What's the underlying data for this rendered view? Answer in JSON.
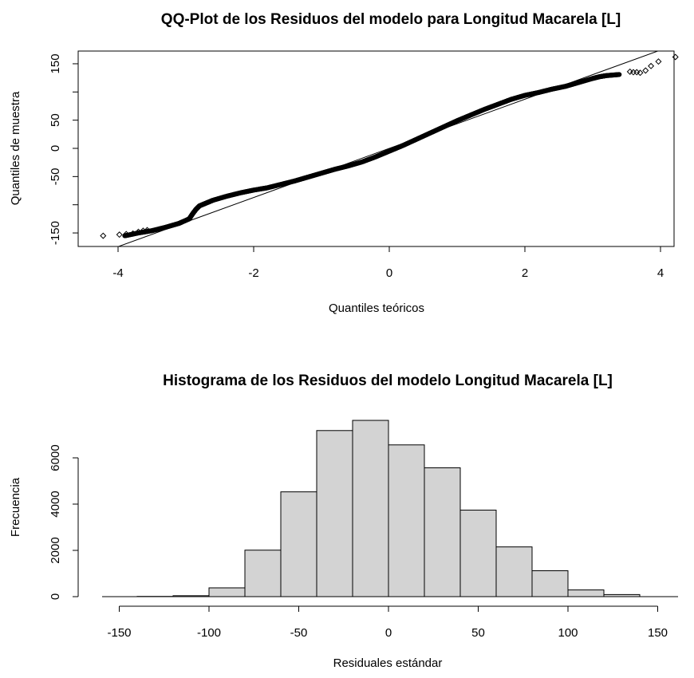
{
  "chart_data": [
    {
      "type": "scatter",
      "title": "QQ-Plot de los Residuos del modelo para Longitud Macarela [L]",
      "xlabel": "Quantiles teóricos",
      "ylabel": "Quantiles de muestra",
      "xlim": [
        -4.4,
        4.4
      ],
      "ylim": [
        -170,
        170
      ],
      "x_ticks": [
        -4,
        -2,
        0,
        2,
        4
      ],
      "y_ticks": [
        -150,
        -50,
        0,
        50,
        150
      ],
      "y_tick_labels": [
        "-150",
        "-50",
        "0",
        "50",
        "150"
      ],
      "reference_line": {
        "x": [
          -4.2,
          4.2
        ],
        "y": [
          -183,
          183
        ]
      },
      "quantile_curve": {
        "x": [
          -3.9,
          -3.7,
          -3.5,
          -3.3,
          -3.1,
          -2.95,
          -2.9,
          -2.85,
          -2.8,
          -2.7,
          -2.6,
          -2.4,
          -2.2,
          -2.0,
          -1.8,
          -1.6,
          -1.4,
          -1.2,
          -1.0,
          -0.8,
          -0.6,
          -0.4,
          -0.2,
          0.0,
          0.2,
          0.4,
          0.6,
          0.8,
          1.0,
          1.2,
          1.4,
          1.6,
          1.8,
          2.0,
          2.2,
          2.4,
          2.6,
          2.8,
          3.0,
          3.1,
          3.2,
          3.4
        ],
        "y": [
          -155,
          -150,
          -146,
          -140,
          -133,
          -125,
          -116,
          -108,
          -102,
          -97,
          -92,
          -85,
          -79,
          -74,
          -70,
          -64,
          -58,
          -51,
          -44,
          -37,
          -31,
          -24,
          -15,
          -5,
          5,
          16,
          27,
          38,
          49,
          59,
          69,
          78,
          87,
          94,
          99,
          105,
          110,
          117,
          124,
          127,
          129,
          131
        ]
      },
      "tail_points": {
        "x": [
          -4.22,
          -3.98,
          -3.88,
          -3.78,
          -3.7,
          -3.63,
          -3.57,
          3.55,
          3.6,
          3.65,
          3.7,
          3.78,
          3.86,
          3.97,
          4.22
        ],
        "y": [
          -155,
          -153,
          -152,
          -151,
          -148,
          -146,
          -145,
          136,
          135,
          135,
          134,
          138,
          146,
          154,
          162
        ]
      }
    },
    {
      "type": "bar",
      "title": "Histograma de los Residuos del modelo Longitud Macarela [L]",
      "xlabel": "Residuales estándar",
      "ylabel": "Frecuencia",
      "bin_edges": [
        -140,
        -120,
        -100,
        -80,
        -60,
        -40,
        -20,
        0,
        20,
        40,
        60,
        80,
        100,
        120,
        140
      ],
      "values": [
        10,
        40,
        380,
        2010,
        4530,
        7180,
        7620,
        6560,
        5570,
        3740,
        2150,
        1120,
        290,
        90
      ],
      "xlim": [
        -160,
        160
      ],
      "ylim": [
        0,
        7650
      ],
      "x_ticks": [
        -150,
        -100,
        -50,
        0,
        50,
        100,
        150
      ],
      "y_ticks": [
        0,
        2000,
        4000,
        6000
      ],
      "bar_color": "#d3d3d3"
    }
  ]
}
